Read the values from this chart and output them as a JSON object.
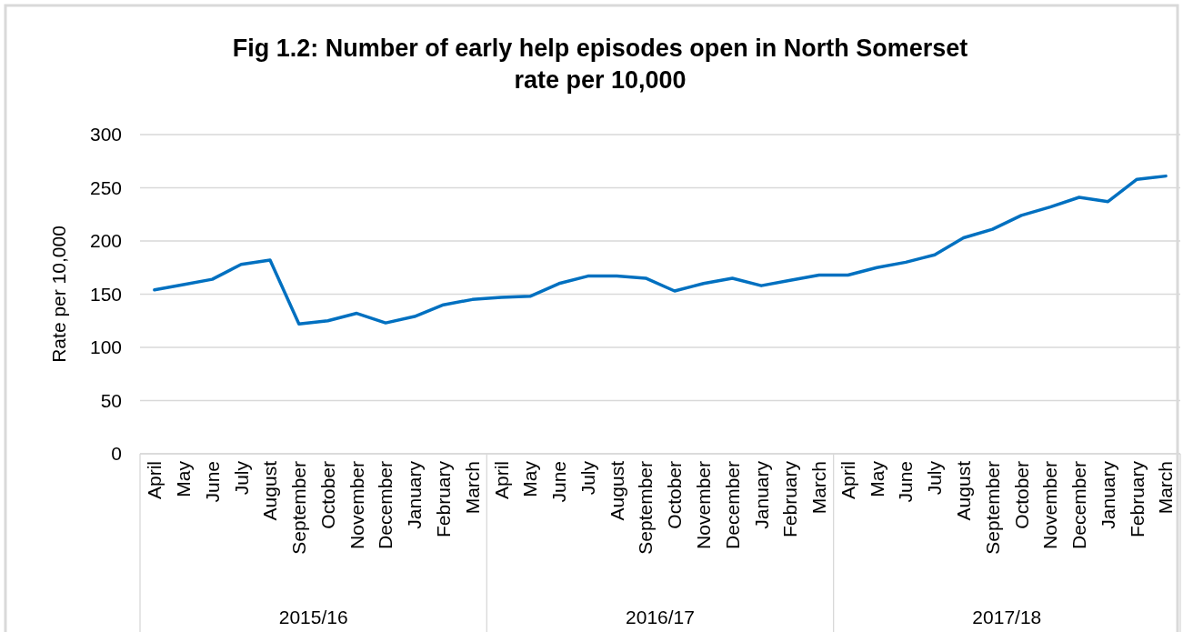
{
  "chart_data": {
    "type": "line",
    "title": "Fig 1.2: Number of early help episodes open in North Somerset\nrate per 10,000",
    "ylabel": "Rate per 10,000",
    "categories": [
      "April",
      "May",
      "June",
      "July",
      "August",
      "September",
      "October",
      "November",
      "December",
      "January",
      "February",
      "March",
      "April",
      "May",
      "June",
      "July",
      "August",
      "September",
      "October",
      "November",
      "December",
      "January",
      "February",
      "March",
      "April",
      "May",
      "June",
      "July",
      "August",
      "September",
      "October",
      "November",
      "December",
      "January",
      "February",
      "March"
    ],
    "series": [
      {
        "color": "#0070c0",
        "values": [
          154,
          159,
          164,
          178,
          182,
          122,
          125,
          132,
          123,
          129,
          140,
          145,
          147,
          148,
          160,
          167,
          167,
          165,
          153,
          160,
          165,
          158,
          163,
          168,
          168,
          175,
          180,
          187,
          203,
          211,
          224,
          232,
          241,
          237,
          258,
          261
        ]
      }
    ],
    "annotations": [
      "2015/16",
      "2016/17",
      "2017/18"
    ],
    "ylim": [
      0,
      300
    ],
    "yticks": [
      0,
      50,
      100,
      150,
      200,
      250,
      300
    ],
    "grid": "y",
    "marker": "none",
    "line_style": "solid"
  }
}
